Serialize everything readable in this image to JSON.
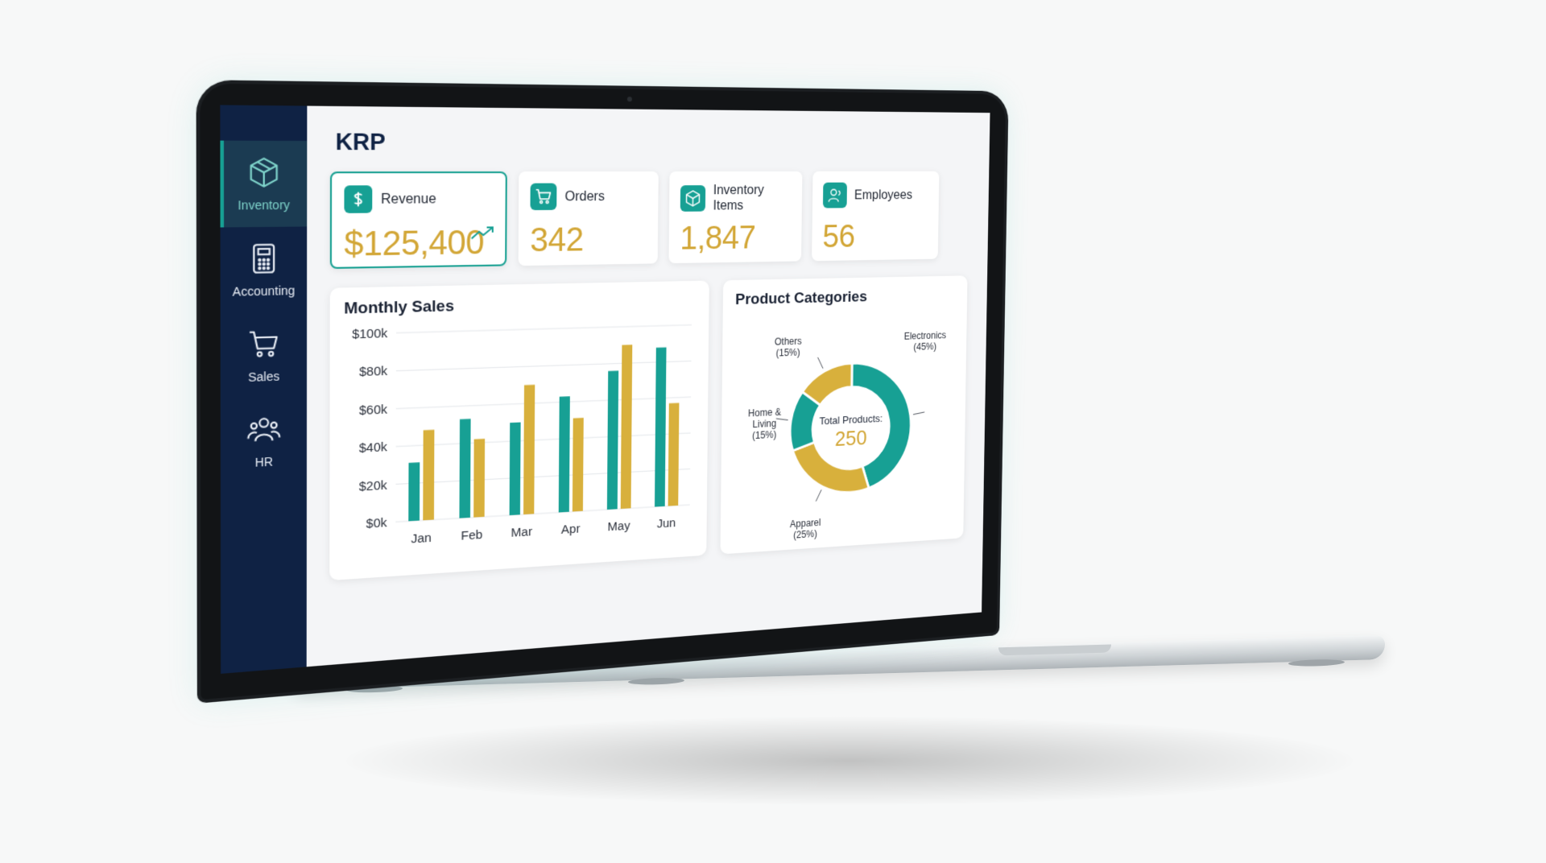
{
  "app": {
    "title": "KRP"
  },
  "sidebar": {
    "items": [
      {
        "label": "Inventory",
        "icon": "box-icon",
        "active": true
      },
      {
        "label": "Accounting",
        "icon": "calculator-icon",
        "active": false
      },
      {
        "label": "Sales",
        "icon": "cart-icon",
        "active": false
      },
      {
        "label": "HR",
        "icon": "users-icon",
        "active": false
      }
    ]
  },
  "kpis": [
    {
      "label": "Revenue",
      "value": "$125,400",
      "icon": "dollar-icon",
      "trend_icon": "trend-up-icon"
    },
    {
      "label": "Orders",
      "value": "342",
      "icon": "cart-icon"
    },
    {
      "label": "Inventory Items",
      "value": "1,847",
      "icon": "box-icon"
    },
    {
      "label": "Employees",
      "value": "56",
      "icon": "user-icon"
    }
  ],
  "colors": {
    "primary": "#17a094",
    "accent": "#d8b03c",
    "sidebar": "#0f2244"
  },
  "chart_data": [
    {
      "type": "bar",
      "title": "Monthly Sales",
      "categories": [
        "Jan",
        "Feb",
        "Mar",
        "Apr",
        "May",
        "Jun"
      ],
      "series": [
        {
          "values": [
            31,
            53,
            50,
            63,
            76,
            88
          ],
          "color": "#17a094"
        },
        {
          "values": [
            48,
            42,
            70,
            51,
            90,
            57
          ],
          "color": "#d8b03c"
        }
      ],
      "ylim": [
        0,
        100
      ],
      "yticks": [
        "$0k",
        "$20k",
        "$40k",
        "$60k",
        "$80k",
        "$100k"
      ],
      "grid": true
    },
    {
      "type": "pie",
      "title": "Product Categories",
      "center_label": "Total Products:",
      "center_value": "250",
      "slices": [
        {
          "name": "Electronics",
          "pct": 45,
          "label": "(45%)",
          "color": "#17a094"
        },
        {
          "name": "Apparel",
          "pct": 25,
          "label": "(25%)",
          "color": "#d8b03c"
        },
        {
          "name": "Home & Living",
          "pct": 15,
          "label": "(15%)",
          "color": "#17a094"
        },
        {
          "name": "Others",
          "pct": 15,
          "label": "(15%)",
          "color": "#d8b03c"
        }
      ]
    }
  ]
}
